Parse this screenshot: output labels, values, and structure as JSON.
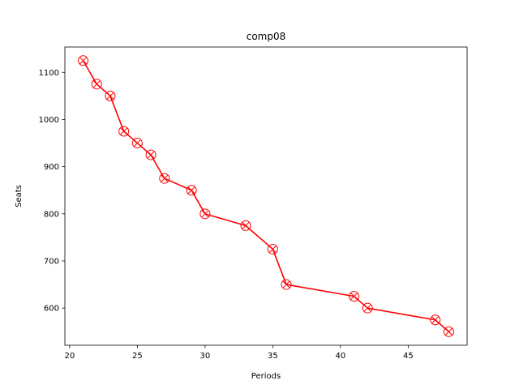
{
  "chart_data": {
    "type": "line",
    "title": "comp08",
    "xlabel": "Periods",
    "ylabel": "Seats",
    "xlim": [
      19.65,
      49.35
    ],
    "ylim": [
      521.25,
      1153.75
    ],
    "xticks": [
      20,
      25,
      30,
      35,
      40,
      45
    ],
    "yticks": [
      600,
      700,
      800,
      900,
      1000,
      1100
    ],
    "grid": false,
    "series": [
      {
        "color": "#ff0000",
        "marker": "circle-x",
        "x": [
          21,
          22,
          23,
          24,
          25,
          26,
          27,
          29,
          30,
          33,
          35,
          36,
          41,
          42,
          47,
          48
        ],
        "y": [
          1125,
          1075,
          1050,
          975,
          950,
          925,
          875,
          850,
          800,
          775,
          725,
          650,
          625,
          600,
          575,
          550
        ]
      }
    ]
  }
}
